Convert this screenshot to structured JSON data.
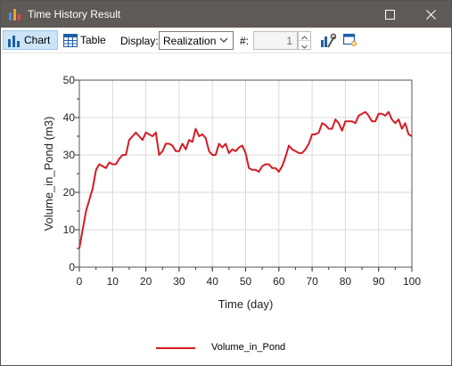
{
  "window": {
    "title": "Time History Result"
  },
  "toolbar": {
    "chart_label": "Chart",
    "table_label": "Table",
    "display_label": "Display:",
    "display_value": "Realization",
    "realization_label": "#:",
    "realization_value": "1"
  },
  "icons": {
    "app": "bar-chart-icon",
    "maximize": "maximize-icon",
    "close": "close-icon",
    "chart": "bar-chart-icon",
    "table": "table-grid-icon",
    "settings": "chart-settings-icon",
    "export": "chart-export-icon"
  },
  "colors": {
    "series": "#d41c24",
    "titlebar": "#5f5a56",
    "active_button": "#cce4f7"
  },
  "chart_data": {
    "type": "line",
    "xlabel": "Time (day)",
    "ylabel": "Volume_in_Pond (m3)",
    "xlim": [
      0,
      100
    ],
    "ylim": [
      0,
      50
    ],
    "xticks": [
      0,
      10,
      20,
      30,
      40,
      50,
      60,
      70,
      80,
      90,
      100
    ],
    "yticks": [
      0,
      10,
      20,
      30,
      40,
      50
    ],
    "grid": true,
    "legend_position": "bottom",
    "series": [
      {
        "name": "Volume_in_Pond",
        "color": "#d41c24",
        "x": [
          0,
          1,
          2,
          3,
          4,
          5,
          6,
          7,
          8,
          9,
          10,
          11,
          12,
          13,
          14,
          15,
          16,
          17,
          18,
          19,
          20,
          21,
          22,
          23,
          24,
          25,
          26,
          27,
          28,
          29,
          30,
          31,
          32,
          33,
          34,
          35,
          36,
          37,
          38,
          39,
          40,
          41,
          42,
          43,
          44,
          45,
          46,
          47,
          48,
          49,
          50,
          51,
          52,
          53,
          54,
          55,
          56,
          57,
          58,
          59,
          60,
          61,
          62,
          63,
          64,
          65,
          66,
          67,
          68,
          69,
          70,
          71,
          72,
          73,
          74,
          75,
          76,
          77,
          78,
          79,
          80,
          81,
          82,
          83,
          84,
          85,
          86,
          87,
          88,
          89,
          90,
          91,
          92,
          93,
          94,
          95,
          96,
          97,
          98,
          99,
          100
        ],
        "y": [
          5,
          10,
          15,
          18,
          21,
          26,
          27.5,
          27,
          26.5,
          28,
          27.5,
          27.5,
          29,
          30,
          30,
          34,
          35,
          36,
          35,
          34,
          36,
          35.5,
          35,
          36,
          30,
          31,
          33,
          33,
          32.5,
          31,
          31,
          33,
          31.5,
          34,
          33.5,
          37,
          35,
          35.5,
          34.5,
          31,
          30,
          30,
          33,
          32,
          33,
          30.5,
          31.5,
          31,
          32,
          32.5,
          30.5,
          26.5,
          26,
          26,
          25.5,
          27,
          27.5,
          27.5,
          26.5,
          26.5,
          25.5,
          27,
          29.5,
          32.5,
          31.5,
          31,
          30.5,
          30.5,
          31.5,
          33,
          35.5,
          35.5,
          36,
          38.5,
          38,
          37,
          37,
          39.5,
          38.5,
          36.5,
          39,
          39,
          39,
          38.5,
          40.5,
          41,
          41.5,
          40.5,
          39,
          39,
          41,
          41,
          40.5,
          41.5,
          39.5,
          38.5,
          39.5,
          37,
          38.5,
          35.5,
          35
        ]
      }
    ]
  }
}
